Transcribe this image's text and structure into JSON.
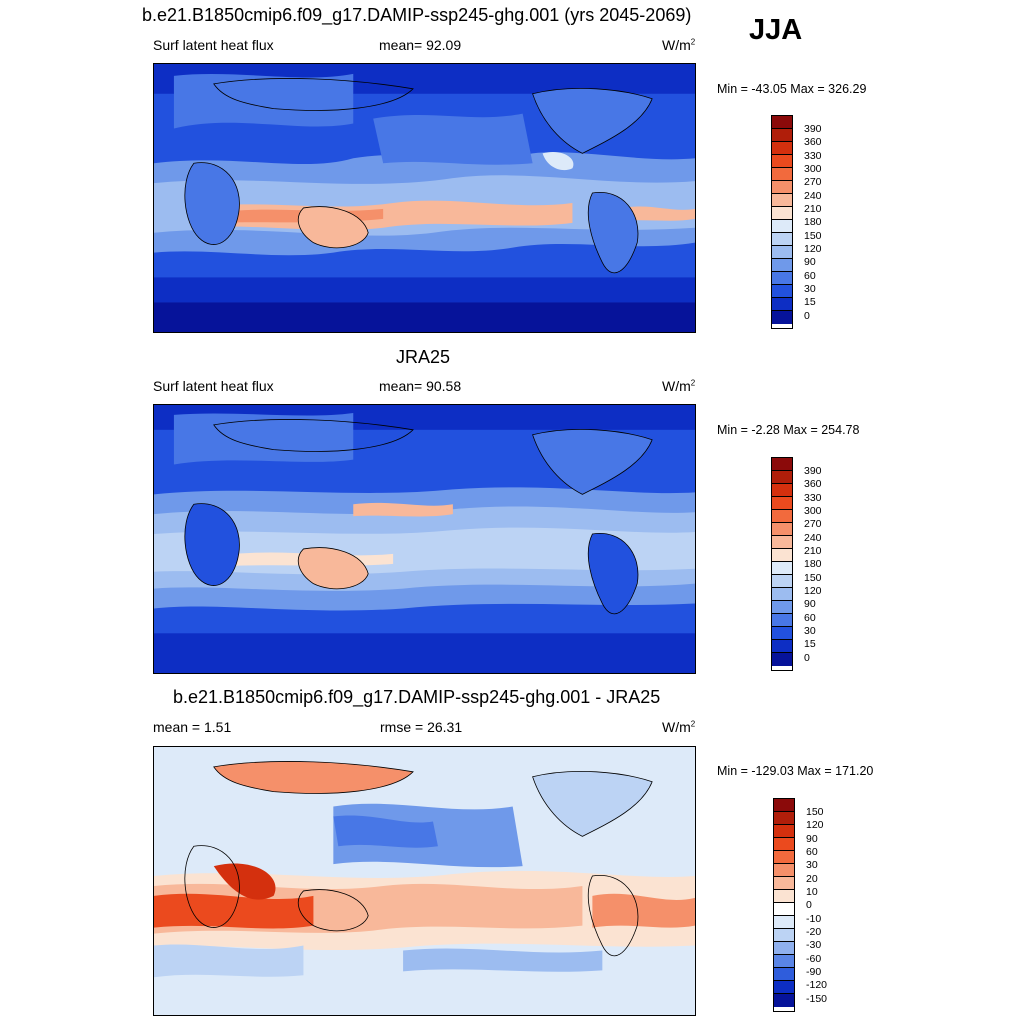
{
  "season": "JJA",
  "panels": [
    {
      "title": "b.e21.B1850cmip6.f09_g17.DAMIP-ssp245-ghg.001 (yrs 2045-2069)",
      "left_label": "Surf latent heat flux",
      "mid_label": "mean=  92.09",
      "units": "W/m",
      "units_exp": "2",
      "minmax": "Min = -43.05 Max = 326.29",
      "levels": [
        "390",
        "360",
        "330",
        "300",
        "270",
        "240",
        "210",
        "180",
        "150",
        "120",
        "90",
        "60",
        "30",
        "15",
        "0"
      ]
    },
    {
      "title": "JRA25",
      "left_label": "Surf latent heat flux",
      "mid_label": "mean=  90.58",
      "units": "W/m",
      "units_exp": "2",
      "minmax": "Min =  -2.28 Max = 254.78",
      "levels": [
        "390",
        "360",
        "330",
        "300",
        "270",
        "240",
        "210",
        "180",
        "150",
        "120",
        "90",
        "60",
        "30",
        "15",
        "0"
      ]
    },
    {
      "title": "b.e21.B1850cmip6.f09_g17.DAMIP-ssp245-ghg.001 - JRA25",
      "left_label": "mean =   1.51",
      "mid_label": "rmse =  26.31",
      "units": "W/m",
      "units_exp": "2",
      "minmax": "Min = -129.03 Max = 171.20",
      "levels": [
        "150",
        "120",
        "90",
        "60",
        "30",
        "20",
        "10",
        "0",
        "-10",
        "-20",
        "-30",
        "-60",
        "-90",
        "-120",
        "-150"
      ]
    }
  ],
  "colors": {
    "abs_scale": [
      "#8b0a0a",
      "#b01e0a",
      "#d4300e",
      "#eb4a1e",
      "#f26a3d",
      "#f5906a",
      "#f8b89a",
      "#fbe3d2",
      "#ddeaf9",
      "#bcd3f4",
      "#9cbcf0",
      "#6f99ea",
      "#4877e6",
      "#2251de",
      "#0d2ec4",
      "#06139a"
    ],
    "diff_scale": [
      "#8b0a0a",
      "#b01e0a",
      "#d4300e",
      "#eb4a1e",
      "#f26a3d",
      "#f5906a",
      "#f8b89a",
      "#fbe3d2",
      "#ffffff",
      "#ddeaf9",
      "#bcd3f4",
      "#8fb0ee",
      "#5a85e6",
      "#2f5ddc",
      "#0d2ec4",
      "#06139a"
    ]
  }
}
